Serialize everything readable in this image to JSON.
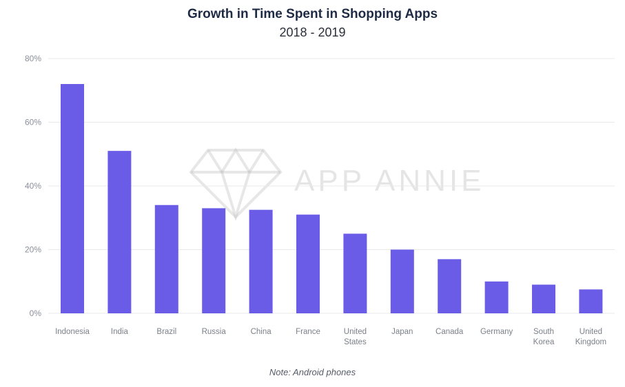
{
  "title": "Growth in Time Spent in Shopping Apps",
  "subtitle": "2018 - 2019",
  "note": "Note: Android phones",
  "watermark": "APP ANNIE",
  "colors": {
    "bar": "#6b5ce7",
    "grid": "#e6e8ec",
    "tick_text": "#8a8f99",
    "axis_text": "#7a7f88"
  },
  "chart_data": {
    "type": "bar",
    "title": "Growth in Time Spent in Shopping Apps",
    "subtitle": "2018 - 2019",
    "categories": [
      [
        "Indonesia"
      ],
      [
        "India"
      ],
      [
        "Brazil"
      ],
      [
        "Russia"
      ],
      [
        "China"
      ],
      [
        "France"
      ],
      [
        "United",
        "States"
      ],
      [
        "Japan"
      ],
      [
        "Canada"
      ],
      [
        "Germany"
      ],
      [
        "South",
        "Korea"
      ],
      [
        "United",
        "Kingdom"
      ]
    ],
    "values": [
      72,
      51,
      34,
      33,
      32.5,
      31,
      25,
      20,
      17,
      10,
      9,
      7.5
    ],
    "yticks": [
      "0%",
      "20%",
      "40%",
      "60%",
      "80%"
    ],
    "ytick_values": [
      0,
      20,
      40,
      60,
      80
    ],
    "ylim": [
      0,
      80
    ],
    "grid": true,
    "legend": "none"
  }
}
